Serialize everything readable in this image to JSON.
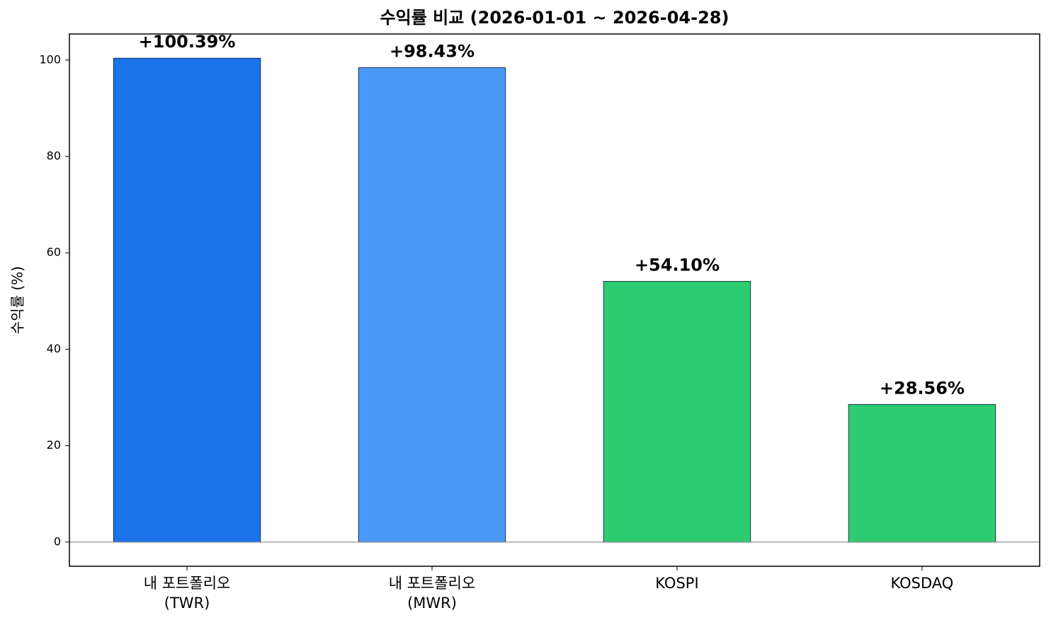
{
  "chart_data": {
    "type": "bar",
    "title": "수익률 비교 (2026-01-01 ~ 2026-04-28)",
    "y_label": "수익률 (%)",
    "categories": [
      "내 포트폴리오\n(TWR)",
      "내 포트폴리오\n(MWR)",
      "KOSPI",
      "KOSDAQ"
    ],
    "values": [
      100.39,
      98.43,
      54.1,
      28.56
    ],
    "value_labels": [
      "+100.39%",
      "+98.43%",
      "+54.10%",
      "+28.56%"
    ],
    "colors": [
      "#1a73e8",
      "#4a9af5",
      "#2ecc71",
      "#2ecc71"
    ],
    "ylim": [
      -5.02,
      105.41
    ],
    "yticks": [
      0,
      20,
      40,
      60,
      80,
      100
    ],
    "grid": false
  }
}
